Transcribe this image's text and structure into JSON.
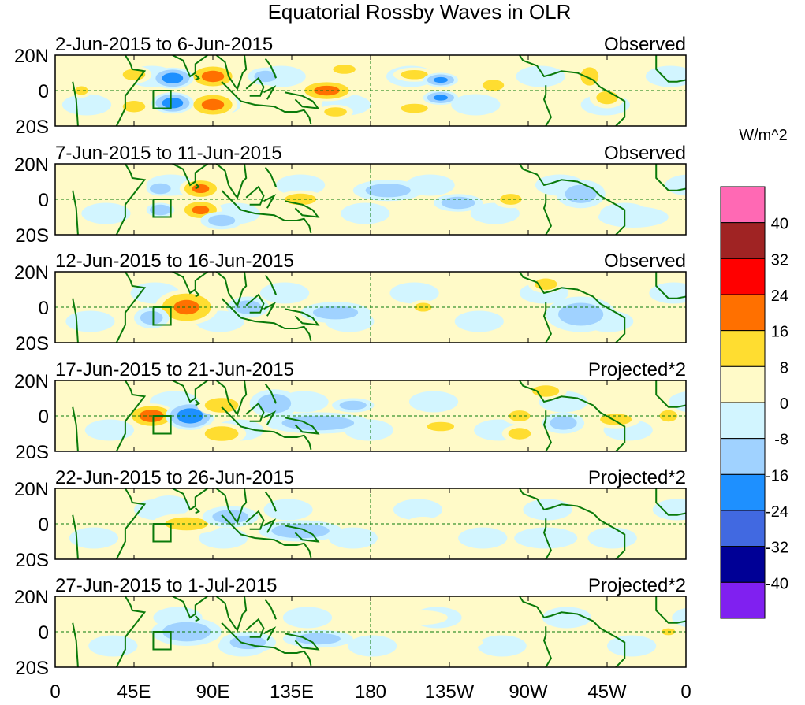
{
  "chart_data": {
    "type": "heatmap",
    "title": "Equatorial Rossby Waves in OLR",
    "units": "W/m^2",
    "x_ticks": [
      "0",
      "45E",
      "90E",
      "135E",
      "180",
      "135W",
      "90W",
      "45W",
      "0"
    ],
    "x_tick_lons": [
      0,
      45,
      90,
      135,
      180,
      225,
      270,
      315,
      360
    ],
    "y_ticks": [
      "20N",
      "0",
      "20S"
    ],
    "y_tick_lats": [
      20,
      0,
      -20
    ],
    "xlim": [
      0,
      360
    ],
    "ylim": [
      -20,
      20
    ],
    "colorbar": {
      "labels": [
        "40",
        "32",
        "24",
        "16",
        "8",
        "0",
        "-8",
        "-16",
        "-24",
        "-32",
        "-40"
      ],
      "colors": [
        "#ff69b4",
        "#a02323",
        "#ff0000",
        "#ff7000",
        "#ffdd30",
        "#fffac8",
        "#d2f5ff",
        "#a0d2ff",
        "#1e90ff",
        "#4169e1",
        "#000096",
        "#8020f0"
      ]
    },
    "panels": [
      {
        "period": "2-Jun-2015 to 6-Jun-2015",
        "type": "Observed",
        "features": [
          [
            90,
            8,
            14,
            7,
            20
          ],
          [
            90,
            -8,
            14,
            7,
            20
          ],
          [
            67,
            7,
            12,
            6,
            -22
          ],
          [
            67,
            -7,
            12,
            6,
            -22
          ],
          [
            155,
            0,
            16,
            6,
            20
          ],
          [
            45,
            9,
            10,
            5,
            10
          ],
          [
            45,
            -9,
            10,
            5,
            10
          ],
          [
            165,
            12,
            10,
            4,
            10
          ],
          [
            160,
            -12,
            10,
            4,
            10
          ],
          [
            205,
            -10,
            12,
            4,
            10
          ],
          [
            205,
            9,
            12,
            4,
            10
          ],
          [
            220,
            6,
            10,
            4,
            -18
          ],
          [
            220,
            -4,
            10,
            4,
            -18
          ],
          [
            250,
            3,
            10,
            5,
            9
          ],
          [
            305,
            8,
            8,
            8,
            10
          ],
          [
            315,
            -4,
            10,
            6,
            9
          ],
          [
            15,
            0,
            6,
            4,
            9
          ],
          [
            120,
            8,
            10,
            5,
            -10
          ]
        ]
      },
      {
        "period": "7-Jun-2015 to 11-Jun-2015",
        "type": "Observed",
        "features": [
          [
            83,
            6,
            12,
            6,
            18
          ],
          [
            83,
            -6,
            12,
            6,
            18
          ],
          [
            60,
            6,
            8,
            4,
            -16
          ],
          [
            60,
            -6,
            8,
            4,
            -16
          ],
          [
            140,
            0,
            14,
            5,
            10
          ],
          [
            190,
            5,
            20,
            6,
            -10
          ],
          [
            230,
            -2,
            14,
            5,
            -12
          ],
          [
            260,
            0,
            10,
            5,
            9
          ],
          [
            300,
            3,
            14,
            8,
            -10
          ],
          [
            95,
            -12,
            12,
            5,
            -10
          ],
          [
            330,
            -10,
            20,
            6,
            -8
          ]
        ]
      },
      {
        "period": "12-Jun-2015 to 16-Jun-2015",
        "type": "Observed",
        "features": [
          [
            75,
            0,
            18,
            10,
            18
          ],
          [
            55,
            -6,
            10,
            6,
            -10
          ],
          [
            110,
            0,
            12,
            6,
            -10
          ],
          [
            160,
            -3,
            20,
            6,
            -10
          ],
          [
            210,
            0,
            8,
            4,
            9
          ],
          [
            280,
            13,
            10,
            5,
            10
          ],
          [
            300,
            -4,
            20,
            10,
            -10
          ]
        ]
      },
      {
        "period": "17-Jun-2015 to 21-Jun-2015",
        "type": "Projected*2",
        "features": [
          [
            55,
            0,
            14,
            7,
            22
          ],
          [
            77,
            0,
            14,
            8,
            -24
          ],
          [
            95,
            6,
            14,
            6,
            12
          ],
          [
            95,
            -10,
            14,
            6,
            12
          ],
          [
            125,
            7,
            14,
            8,
            -12
          ],
          [
            150,
            -4,
            30,
            6,
            -12
          ],
          [
            170,
            6,
            12,
            4,
            -10
          ],
          [
            220,
            -6,
            12,
            4,
            10
          ],
          [
            265,
            0,
            10,
            5,
            9
          ],
          [
            280,
            14,
            12,
            5,
            10
          ],
          [
            290,
            -4,
            12,
            6,
            -10
          ],
          [
            320,
            -2,
            14,
            5,
            10
          ],
          [
            350,
            0,
            8,
            5,
            10
          ],
          [
            265,
            -10,
            10,
            5,
            10
          ]
        ]
      },
      {
        "period": "22-Jun-2015 to 26-Jun-2015",
        "type": "Projected*2",
        "features": [
          [
            65,
            10,
            12,
            6,
            -8
          ],
          [
            75,
            0,
            20,
            6,
            9
          ],
          [
            100,
            4,
            16,
            6,
            -10
          ],
          [
            140,
            -4,
            24,
            6,
            -12
          ],
          [
            170,
            5,
            12,
            4,
            8
          ],
          [
            210,
            0,
            10,
            4,
            8
          ],
          [
            280,
            -8,
            18,
            6,
            -8
          ]
        ]
      },
      {
        "period": "27-Jun-2015 to 1-Jul-2015",
        "type": "Projected*2",
        "features": [
          [
            75,
            0,
            20,
            8,
            -12
          ],
          [
            110,
            -6,
            16,
            6,
            -10
          ],
          [
            150,
            -4,
            20,
            5,
            -10
          ],
          [
            210,
            8,
            14,
            4,
            8
          ],
          [
            230,
            -6,
            14,
            4,
            8
          ],
          [
            350,
            0,
            6,
            3,
            10
          ]
        ]
      }
    ]
  }
}
